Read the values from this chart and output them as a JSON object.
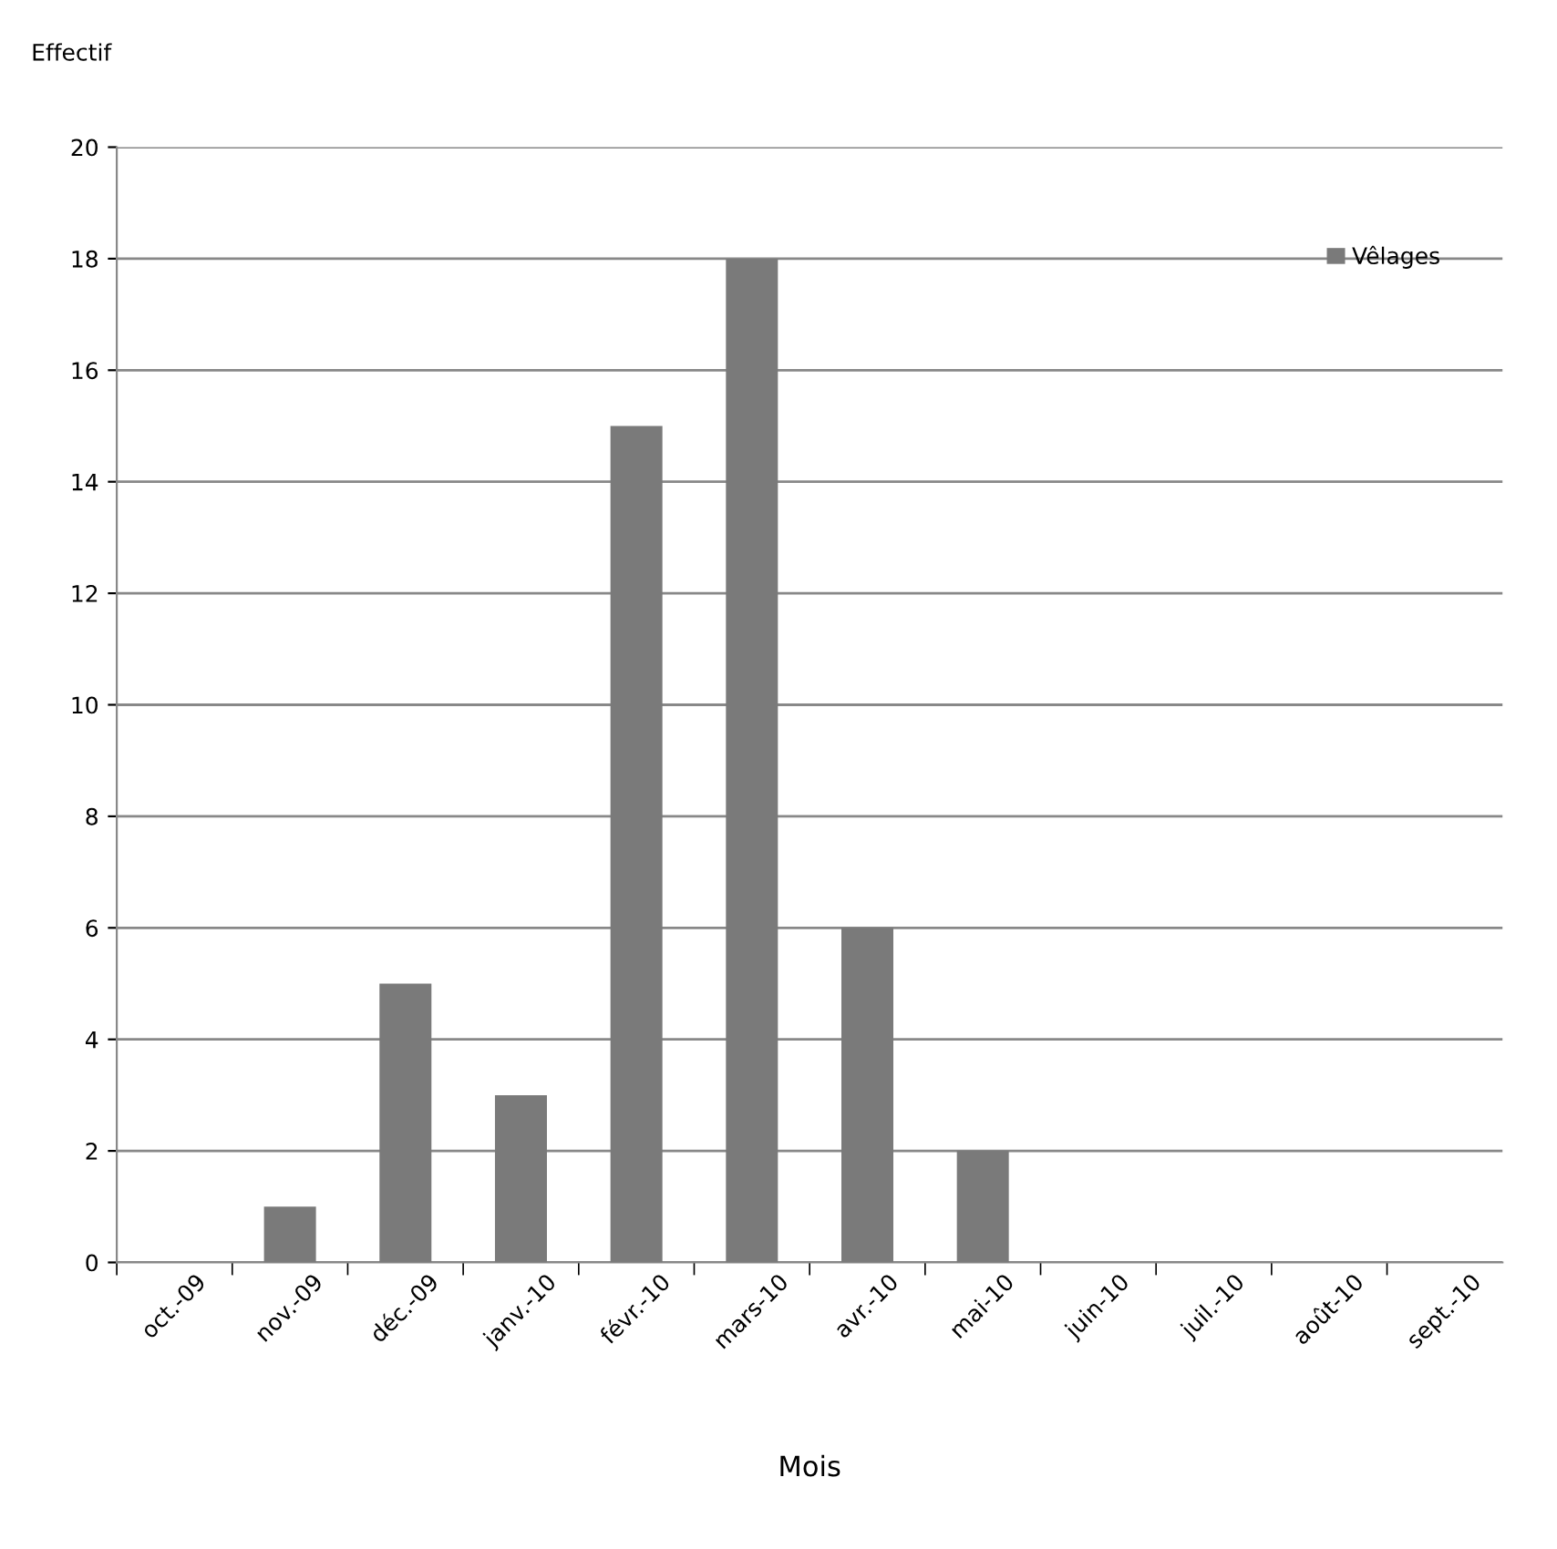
{
  "chart_data": {
    "type": "bar",
    "ylabel": "Effectif",
    "xlabel": "Mois",
    "categories": [
      "oct.-09",
      "nov.-09",
      "déc.-09",
      "janv.-10",
      "févr.-10",
      "mars-10",
      "avr.-10",
      "mai-10",
      "juin-10",
      "juil.-10",
      "août-10",
      "sept.-10"
    ],
    "series": [
      {
        "name": "Vêlages",
        "color": "#7a7a7a",
        "values": [
          0,
          1,
          5,
          3,
          15,
          18,
          6,
          2,
          0,
          0,
          0,
          0
        ]
      }
    ],
    "ylim": [
      0,
      20
    ],
    "yticks": [
      0,
      2,
      4,
      6,
      8,
      10,
      12,
      14,
      16,
      18,
      20
    ],
    "grid": "y",
    "legend": "top right"
  }
}
